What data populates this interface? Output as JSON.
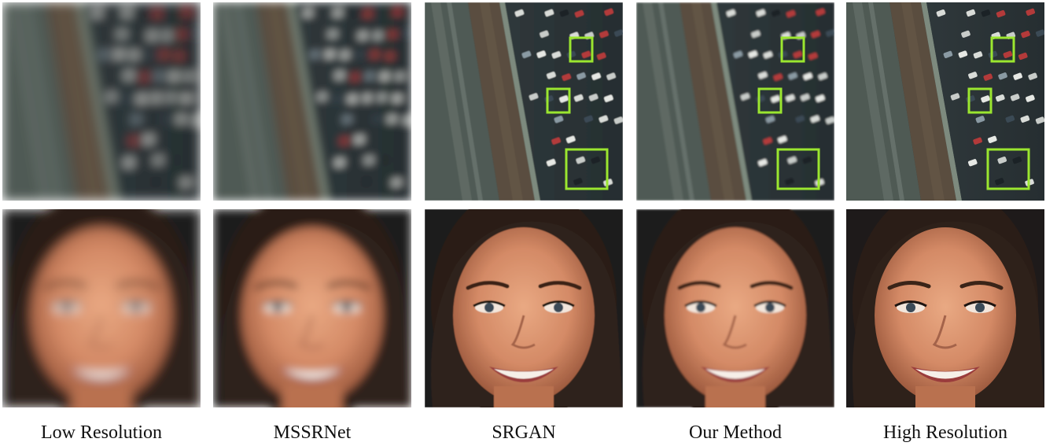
{
  "figure": {
    "rows": [
      "aerial-parking-lot",
      "face"
    ],
    "columns": [
      {
        "id": "low-resolution",
        "label": "Low Resolution",
        "blur": 7,
        "highlight_boxes": false
      },
      {
        "id": "mssrnet",
        "label": "MSSRNet",
        "blur": 5.5,
        "highlight_boxes": false
      },
      {
        "id": "srgan",
        "label": "SRGAN",
        "blur": 0.6,
        "highlight_boxes": true
      },
      {
        "id": "our-method",
        "label": "Our Method",
        "blur": 1.2,
        "highlight_boxes": true
      },
      {
        "id": "high-resolution",
        "label": "High Resolution",
        "blur": 0,
        "highlight_boxes": true
      }
    ],
    "highlight_color": "#9be62f"
  }
}
